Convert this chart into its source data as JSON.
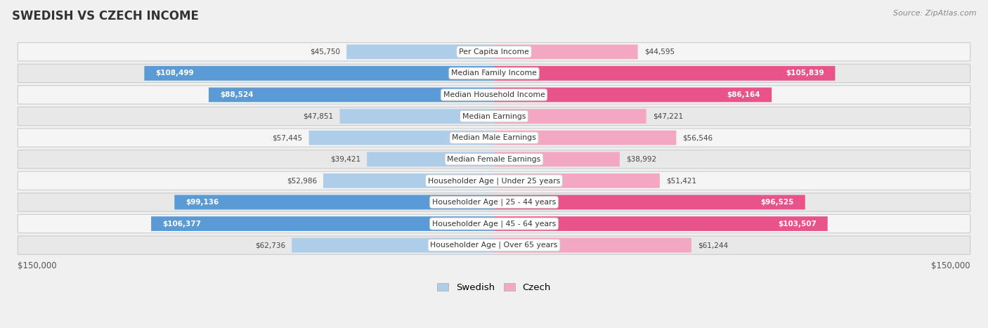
{
  "title": "SWEDISH VS CZECH INCOME",
  "source": "Source: ZipAtlas.com",
  "categories": [
    "Per Capita Income",
    "Median Family Income",
    "Median Household Income",
    "Median Earnings",
    "Median Male Earnings",
    "Median Female Earnings",
    "Householder Age | Under 25 years",
    "Householder Age | 25 - 44 years",
    "Householder Age | 45 - 64 years",
    "Householder Age | Over 65 years"
  ],
  "swedish_values": [
    45750,
    108499,
    88524,
    47851,
    57445,
    39421,
    52986,
    99136,
    106377,
    62736
  ],
  "czech_values": [
    44595,
    105839,
    86164,
    47221,
    56546,
    38992,
    51421,
    96525,
    103507,
    61244
  ],
  "swedish_labels": [
    "$45,750",
    "$108,499",
    "$88,524",
    "$47,851",
    "$57,445",
    "$39,421",
    "$52,986",
    "$99,136",
    "$106,377",
    "$62,736"
  ],
  "czech_labels": [
    "$44,595",
    "$105,839",
    "$86,164",
    "$47,221",
    "$56,546",
    "$38,992",
    "$51,421",
    "$96,525",
    "$103,507",
    "$61,244"
  ],
  "swedish_color_light": "#aecde8",
  "swedish_color_dark": "#5b9bd5",
  "czech_color_light": "#f4a7c3",
  "czech_color_dark": "#e8538a",
  "inside_threshold": 70000,
  "max_value": 150000,
  "bg_color": "#f0f0f0",
  "row_bg_odd": "#e8e8e8",
  "row_bg_even": "#f5f5f5",
  "legend_swedish": "Swedish",
  "legend_czech": "Czech"
}
